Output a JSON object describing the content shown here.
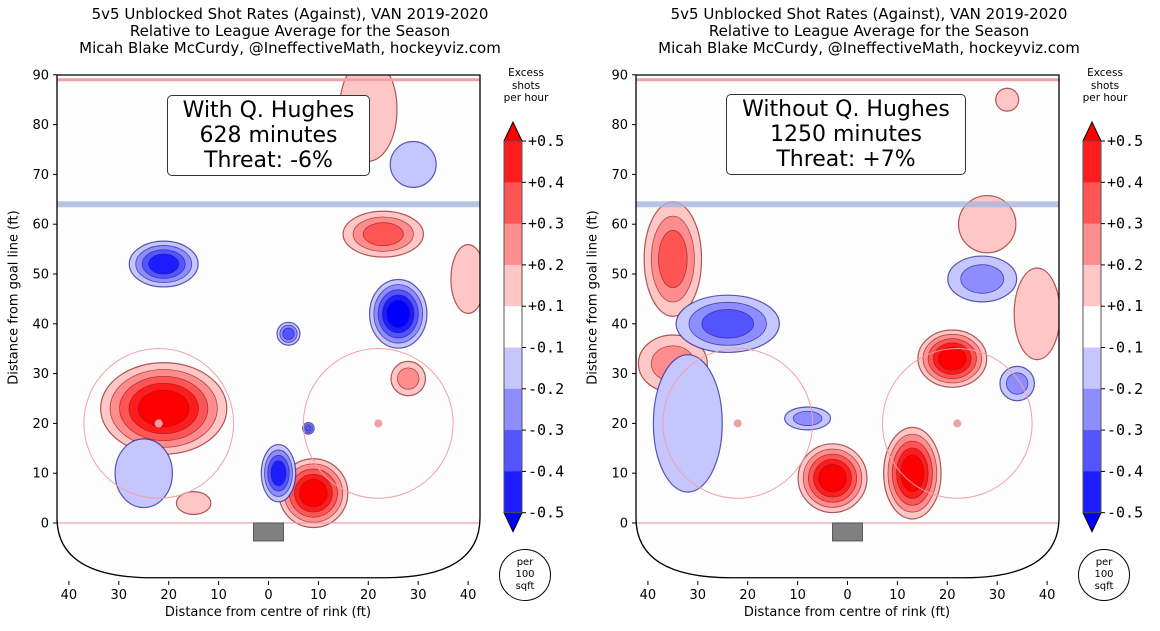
{
  "colors": {
    "neg5": "#0000ff",
    "neg4": "#1c1cff",
    "neg3": "#5555ff",
    "neg2": "#8d8dff",
    "neg1": "#c6c6ff",
    "zero": "#ffffff",
    "pos1": "#ffc6c6",
    "pos2": "#ff8d8d",
    "pos3": "#ff5555",
    "pos4": "#ff1c1c",
    "pos5": "#ff0000",
    "red_line": "#f0a0a8",
    "blue_line": "#a8b4e0",
    "net": "#808080"
  },
  "chart_data": [
    {
      "type": "heatmap",
      "title": [
        "5v5 Unblocked Shot Rates (Against), VAN 2019-2020",
        "Relative to League Average for the Season",
        "Micah Blake McCurdy, @IneffectiveMath, hockeyviz.com"
      ],
      "xlabel": "Distance from centre of rink (ft)",
      "ylabel": "Distance from goal line (ft)",
      "xlim": [
        -42,
        42
      ],
      "ylim": [
        -11,
        90
      ],
      "xticks": [
        -40,
        -30,
        -20,
        -10,
        0,
        10,
        20,
        30,
        40
      ],
      "xtick_labels": [
        "40",
        "30",
        "20",
        "10",
        "0",
        "10",
        "20",
        "30",
        "40"
      ],
      "yticks": [
        0,
        10,
        20,
        30,
        40,
        50,
        60,
        70,
        80,
        90
      ],
      "ytick_labels": [
        "0",
        "10",
        "20",
        "30",
        "40",
        "50",
        "60",
        "70",
        "80",
        "90"
      ],
      "annotation": [
        "With Q. Hughes",
        "628 minutes",
        "Threat: -6%"
      ],
      "colorbar": {
        "title": [
          "Excess",
          "shots",
          "per hour"
        ],
        "ticks": [
          "+0.5",
          "+0.4",
          "+0.3",
          "+0.2",
          "+0.1",
          "-0.1",
          "-0.2",
          "-0.3",
          "-0.4",
          "-0.5"
        ],
        "levels": [
          0.5,
          0.4,
          0.3,
          0.2,
          0.1,
          -0.1,
          -0.2,
          -0.3,
          -0.4,
          -0.5
        ],
        "unit": [
          "per",
          "100",
          "sqft"
        ]
      },
      "hotspots": [
        {
          "x": 9,
          "y": 6,
          "level": 0.5,
          "rx": 6,
          "ry": 6
        },
        {
          "x": -21,
          "y": 23,
          "level": 0.5,
          "rx": 11,
          "ry": 8
        },
        {
          "x": 23,
          "y": 58,
          "level": 0.3,
          "rx": 7,
          "ry": 4
        },
        {
          "x": 28,
          "y": 29,
          "level": 0.2,
          "rx": 3,
          "ry": 3
        },
        {
          "x": -15,
          "y": 4,
          "level": 0.1,
          "rx": 3,
          "ry": 2
        },
        {
          "x": 20,
          "y": 83,
          "level": 0.1,
          "rx": 5,
          "ry": 9
        },
        {
          "x": 40,
          "y": 49,
          "level": 0.1,
          "rx": 3,
          "ry": 6
        },
        {
          "x": 26,
          "y": 42,
          "level": -0.5,
          "rx": 5,
          "ry": 6
        },
        {
          "x": 2,
          "y": 10,
          "level": -0.4,
          "rx": 3,
          "ry": 5
        },
        {
          "x": -21,
          "y": 52,
          "level": -0.4,
          "rx": 6,
          "ry": 4
        },
        {
          "x": 8,
          "y": 19,
          "level": -0.3,
          "rx": 1,
          "ry": 1
        },
        {
          "x": 4,
          "y": 38,
          "level": -0.3,
          "rx": 2,
          "ry": 2
        },
        {
          "x": 29,
          "y": 72,
          "level": -0.1,
          "rx": 4,
          "ry": 4
        },
        {
          "x": -25,
          "y": 10,
          "level": -0.1,
          "rx": 5,
          "ry": 6
        }
      ]
    },
    {
      "type": "heatmap",
      "title": [
        "5v5 Unblocked Shot Rates (Against), VAN 2019-2020",
        "Relative to League Average for the Season",
        "Micah Blake McCurdy, @IneffectiveMath, hockeyviz.com"
      ],
      "xlabel": "Distance from centre of rink (ft)",
      "ylabel": "Distance from goal line (ft)",
      "xlim": [
        -42,
        42
      ],
      "ylim": [
        -11,
        90
      ],
      "xticks": [
        -40,
        -30,
        -20,
        -10,
        0,
        10,
        20,
        30,
        40
      ],
      "xtick_labels": [
        "40",
        "30",
        "20",
        "10",
        "0",
        "10",
        "20",
        "30",
        "40"
      ],
      "yticks": [
        0,
        10,
        20,
        30,
        40,
        50,
        60,
        70,
        80,
        90
      ],
      "ytick_labels": [
        "0",
        "10",
        "20",
        "30",
        "40",
        "50",
        "60",
        "70",
        "80",
        "90"
      ],
      "annotation": [
        "Without Q. Hughes",
        "1250 minutes",
        "Threat: +7%"
      ],
      "colorbar": {
        "title": [
          "Excess",
          "shots",
          "per hour"
        ],
        "ticks": [
          "+0.5",
          "+0.4",
          "+0.3",
          "+0.2",
          "+0.1",
          "-0.1",
          "-0.2",
          "-0.3",
          "-0.4",
          "-0.5"
        ],
        "levels": [
          0.5,
          0.4,
          0.3,
          0.2,
          0.1,
          -0.1,
          -0.2,
          -0.3,
          -0.4,
          -0.5
        ],
        "unit": [
          "per",
          "100",
          "sqft"
        ]
      },
      "hotspots": [
        {
          "x": -3,
          "y": 9,
          "level": 0.5,
          "rx": 6,
          "ry": 6
        },
        {
          "x": 13,
          "y": 10,
          "level": 0.5,
          "rx": 5,
          "ry": 8
        },
        {
          "x": 21,
          "y": 33,
          "level": 0.5,
          "rx": 6,
          "ry": 5
        },
        {
          "x": -35,
          "y": 53,
          "level": 0.3,
          "rx": 5,
          "ry": 10
        },
        {
          "x": -35,
          "y": 32,
          "level": 0.2,
          "rx": 6,
          "ry": 5
        },
        {
          "x": 32,
          "y": 85,
          "level": 0.1,
          "rx": 2,
          "ry": 2
        },
        {
          "x": 28,
          "y": 60,
          "level": 0.1,
          "rx": 5,
          "ry": 5
        },
        {
          "x": 38,
          "y": 42,
          "level": 0.1,
          "rx": 4,
          "ry": 8
        },
        {
          "x": -24,
          "y": 40,
          "level": -0.3,
          "rx": 9,
          "ry": 5
        },
        {
          "x": 27,
          "y": 49,
          "level": -0.2,
          "rx": 6,
          "ry": 4
        },
        {
          "x": 34,
          "y": 28,
          "level": -0.2,
          "rx": 3,
          "ry": 3
        },
        {
          "x": -8,
          "y": 21,
          "level": -0.2,
          "rx": 4,
          "ry": 2
        },
        {
          "x": -32,
          "y": 20,
          "level": -0.1,
          "rx": 6,
          "ry": 12
        }
      ]
    }
  ]
}
